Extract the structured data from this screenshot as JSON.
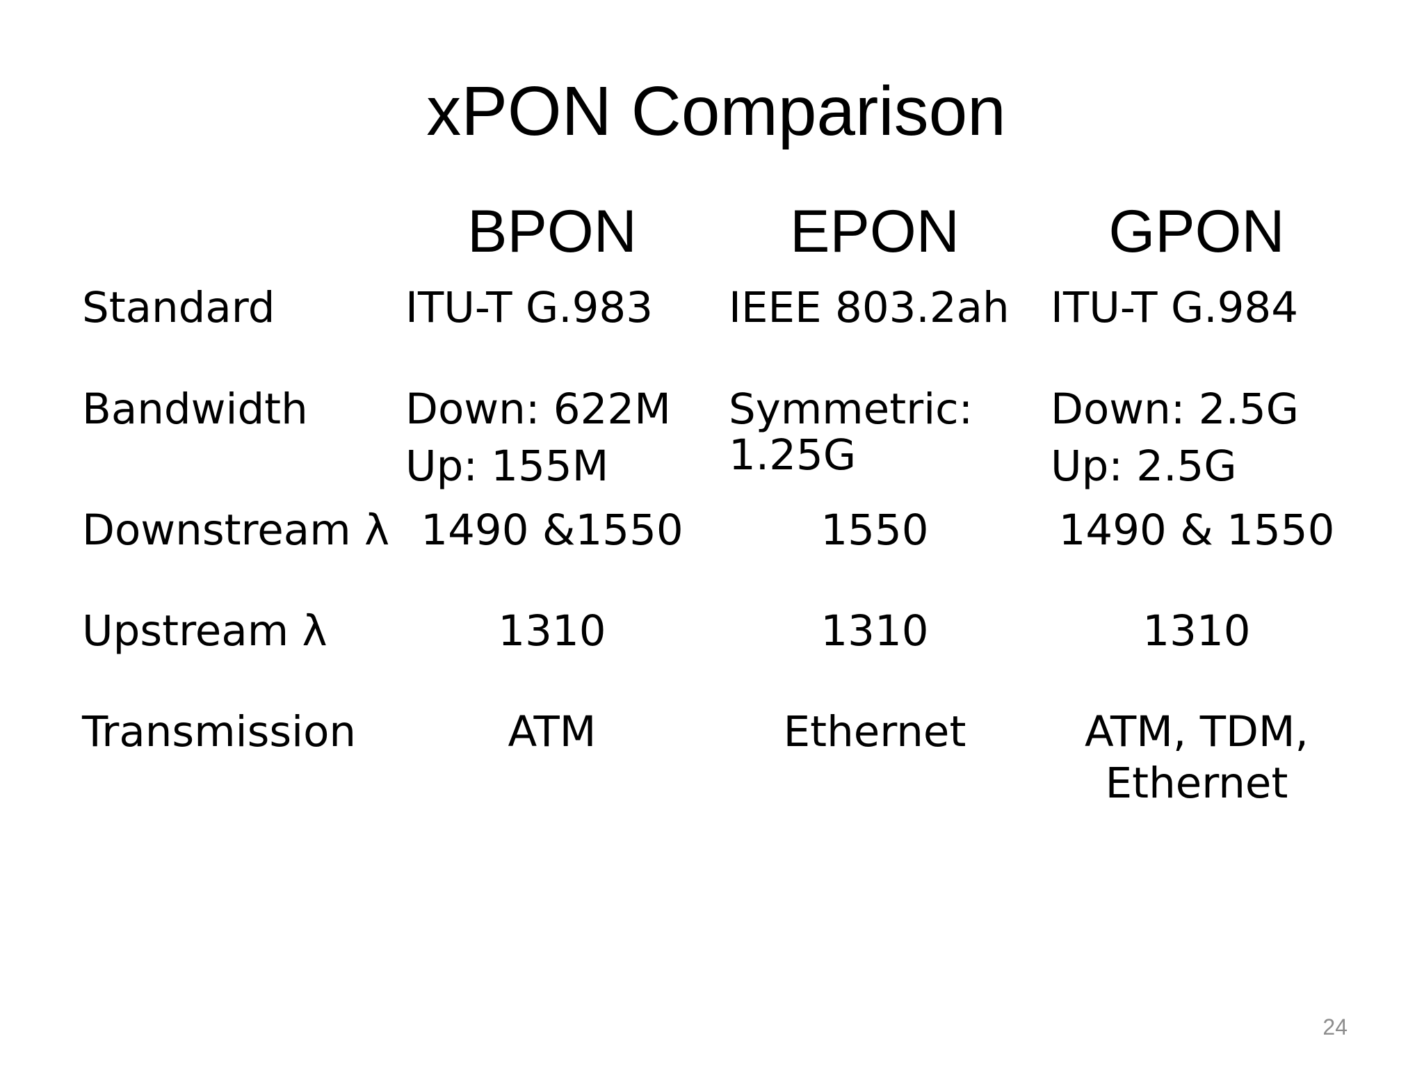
{
  "title": "xPON Comparison",
  "table": {
    "columns": [
      "BPON",
      "EPON",
      "GPON"
    ],
    "rows": [
      {
        "label": "Standard",
        "cells": [
          [
            "ITU-T G.983"
          ],
          [
            "IEEE 803.2ah"
          ],
          [
            "ITU-T G.984"
          ]
        ]
      },
      {
        "label": "Bandwidth",
        "cells": [
          [
            "Down: 622M",
            "Up: 155M"
          ],
          [
            "Symmetric:",
            "1.25G"
          ],
          [
            "Down: 2.5G",
            "Up: 2.5G"
          ]
        ]
      },
      {
        "label": "Downstream λ",
        "cells": [
          [
            "1490 &1550"
          ],
          [
            "1550"
          ],
          [
            "1490 & 1550"
          ]
        ]
      },
      {
        "label": "Upstream λ",
        "cells": [
          [
            "1310"
          ],
          [
            "1310"
          ],
          [
            "1310"
          ]
        ]
      },
      {
        "label": "Transmission",
        "cells": [
          [
            "ATM"
          ],
          [
            "Ethernet"
          ],
          [
            "ATM, TDM,",
            "Ethernet"
          ]
        ]
      }
    ]
  },
  "page_number": "24"
}
